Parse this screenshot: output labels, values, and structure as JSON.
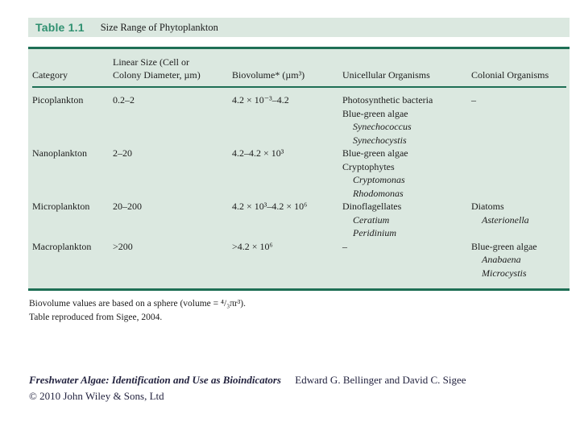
{
  "colors": {
    "panel_bg": "#dbe8e0",
    "accent_dark": "#1e6f55",
    "title_green": "#2f9070",
    "body_text": "#1c1c1c",
    "footer_text": "#23233f"
  },
  "caption": {
    "label": "Table 1.1",
    "title": "Size Range of Phytoplankton"
  },
  "table": {
    "columns": [
      {
        "id": "category",
        "header_lines": [
          "Category"
        ]
      },
      {
        "id": "linear-size",
        "header_lines": [
          "Linear Size (Cell or",
          "Colony Diameter, µm)"
        ]
      },
      {
        "id": "biovolume",
        "header_lines": [
          "Biovolume* (µm³)"
        ]
      },
      {
        "id": "unicellular",
        "header_lines": [
          "Unicellular Organisms"
        ]
      },
      {
        "id": "colonial",
        "header_lines": [
          "Colonial Organisms"
        ]
      }
    ],
    "rows": [
      {
        "cells": [
          [
            {
              "t": "Picoplankton"
            }
          ],
          [
            {
              "t": "0.2–2"
            }
          ],
          [
            {
              "t": "4.2 × 10⁻³–4.2"
            }
          ],
          [
            {
              "t": "Photosynthetic bacteria"
            },
            {
              "t": "Blue-green algae"
            },
            {
              "t": "Synechococcus",
              "i": true
            },
            {
              "t": "Synechocystis",
              "i": true
            }
          ],
          [
            {
              "t": "–"
            }
          ]
        ]
      },
      {
        "cells": [
          [
            {
              "t": "Nanoplankton"
            }
          ],
          [
            {
              "t": "2–20"
            }
          ],
          [
            {
              "t": "4.2–4.2 × 10³"
            }
          ],
          [
            {
              "t": "Blue-green algae"
            },
            {
              "t": "Cryptophytes"
            },
            {
              "t": "Cryptomonas",
              "i": true
            },
            {
              "t": "Rhodomonas",
              "i": true
            }
          ],
          []
        ]
      },
      {
        "cells": [
          [
            {
              "t": "Microplankton"
            }
          ],
          [
            {
              "t": "20–200"
            }
          ],
          [
            {
              "t": "4.2 × 10³–4.2 × 10⁶"
            }
          ],
          [
            {
              "t": "Dinoflagellates"
            },
            {
              "t": "Ceratium",
              "i": true
            },
            {
              "t": "Peridinium",
              "i": true
            }
          ],
          [
            {
              "t": "Diatoms"
            },
            {
              "t": "Asterionella",
              "i": true
            }
          ]
        ]
      },
      {
        "cells": [
          [
            {
              "t": "Macroplankton"
            }
          ],
          [
            {
              "t": ">200"
            }
          ],
          [
            {
              "t": ">4.2 × 10⁶"
            }
          ],
          [
            {
              "t": "–"
            }
          ],
          [
            {
              "t": "Blue-green algae"
            },
            {
              "t": "Anabaena",
              "i": true
            },
            {
              "t": "Microcystis",
              "i": true
            }
          ]
        ]
      }
    ]
  },
  "footnotes": [
    "Biovolume values are based on a sphere (volume = ⁴/₃πr³).",
    "Table reproduced from Sigee, 2004."
  ],
  "citation": {
    "book_title": "Freshwater Algae: Identification and Use as Bioindicators",
    "authors": "Edward G. Bellinger and David C. Sigee",
    "copyright": "© 2010 John Wiley & Sons, Ltd"
  }
}
